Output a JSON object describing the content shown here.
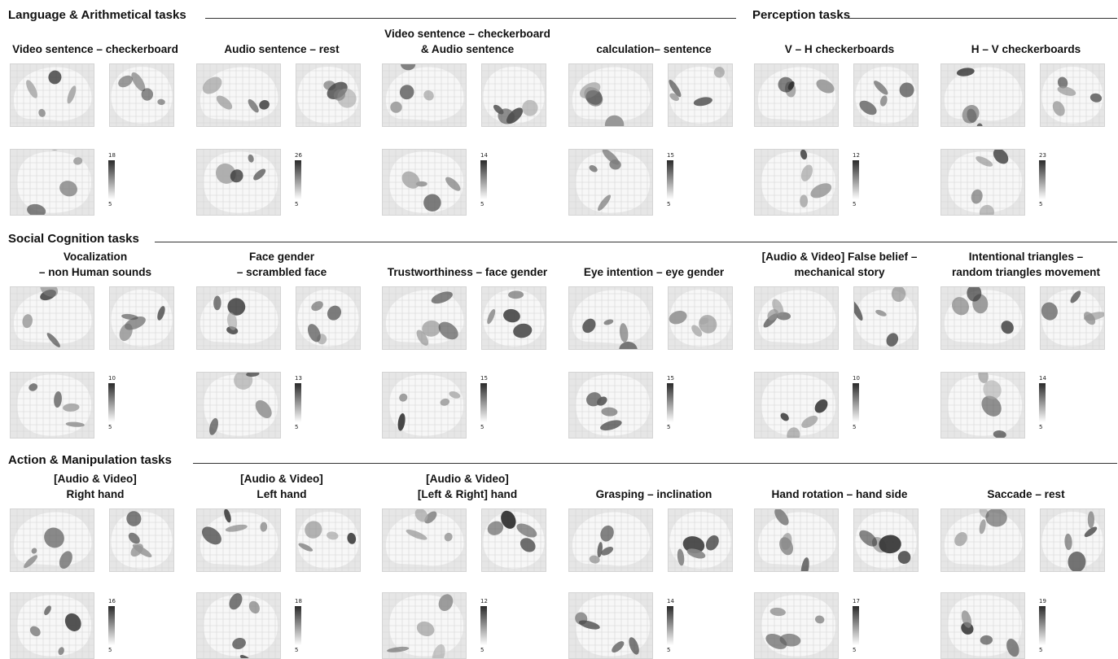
{
  "sections": [
    {
      "title": "Language & Arithmetical tasks"
    },
    {
      "title": "Perception tasks"
    },
    {
      "title": "Social Cognition tasks"
    },
    {
      "title": "Action & Manipulation tasks"
    }
  ],
  "panels": [
    {
      "title": "Video sentence – checkerboard",
      "scale_max": "18",
      "scale_min": "5"
    },
    {
      "title": "Audio sentence – rest",
      "scale_max": "26",
      "scale_min": "5"
    },
    {
      "title": "Video sentence – checkerboard\n& Audio sentence",
      "scale_max": "14",
      "scale_min": "5"
    },
    {
      "title": "calculation– sentence",
      "scale_max": "15",
      "scale_min": "5"
    },
    {
      "title": "V – H checkerboards",
      "scale_max": "12",
      "scale_min": "5"
    },
    {
      "title": "H – V checkerboards",
      "scale_max": "23",
      "scale_min": "5"
    },
    {
      "title": "Vocalization\n– non Human sounds",
      "scale_max": "10",
      "scale_min": "5"
    },
    {
      "title": "Face gender\n– scrambled face",
      "scale_max": "13",
      "scale_min": "5"
    },
    {
      "title": "Trustworthiness – face gender",
      "scale_max": "15",
      "scale_min": "5"
    },
    {
      "title": "Eye intention – eye gender",
      "scale_max": "15",
      "scale_min": "5"
    },
    {
      "title": "[Audio & Video] False belief –\nmechanical story",
      "scale_max": "10",
      "scale_min": "5"
    },
    {
      "title": "Intentional triangles –\nrandom triangles movement",
      "scale_max": "14",
      "scale_min": "5"
    },
    {
      "title": "[Audio & Video]\nRight hand",
      "scale_max": "16",
      "scale_min": "5"
    },
    {
      "title": "[Audio & Video]\nLeft hand",
      "scale_max": "18",
      "scale_min": "5"
    },
    {
      "title": "[Audio & Video]\n[Left & Right] hand",
      "scale_max": "12",
      "scale_min": "5"
    },
    {
      "title": "Grasping – inclination",
      "scale_max": "14",
      "scale_min": "5"
    },
    {
      "title": "Hand rotation – hand side",
      "scale_max": "17",
      "scale_min": "5"
    },
    {
      "title": "Saccade – rest",
      "scale_max": "19",
      "scale_min": "5"
    }
  ]
}
